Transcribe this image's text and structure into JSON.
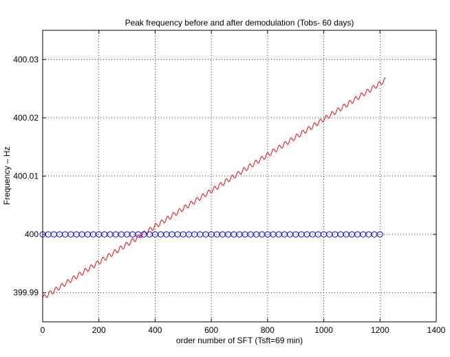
{
  "chart_data": {
    "type": "line",
    "title": "Peak frequency before and after demodulation (Tobs- 60 days)",
    "xlabel": "order number of SFT (Tsft=69 min)",
    "ylabel": "Frequency – Hz",
    "xlim": [
      0,
      1400
    ],
    "ylim": [
      399.985,
      400.035
    ],
    "xticks": [
      0,
      200,
      400,
      600,
      800,
      1000,
      1200,
      1400
    ],
    "yticks": [
      399.99,
      400,
      400.01,
      400.02,
      400.03
    ],
    "ytick_labels": [
      "399.99",
      "400",
      "400.01",
      "400.02",
      "400.03"
    ],
    "grid": true,
    "series": [
      {
        "color": "#ff0000",
        "style": "line",
        "trend_start": [
          0,
          399.9891
        ],
        "trend_end": [
          1220,
          400.0265
        ],
        "oscillation_period_sfts": 20.9,
        "oscillation_amplitude_hz": 0.0004
      },
      {
        "color": "#0000ff",
        "style": "open-circle markers",
        "x_start": 0,
        "x_end": 1200,
        "x_step": 20,
        "value": 400.0
      }
    ]
  }
}
